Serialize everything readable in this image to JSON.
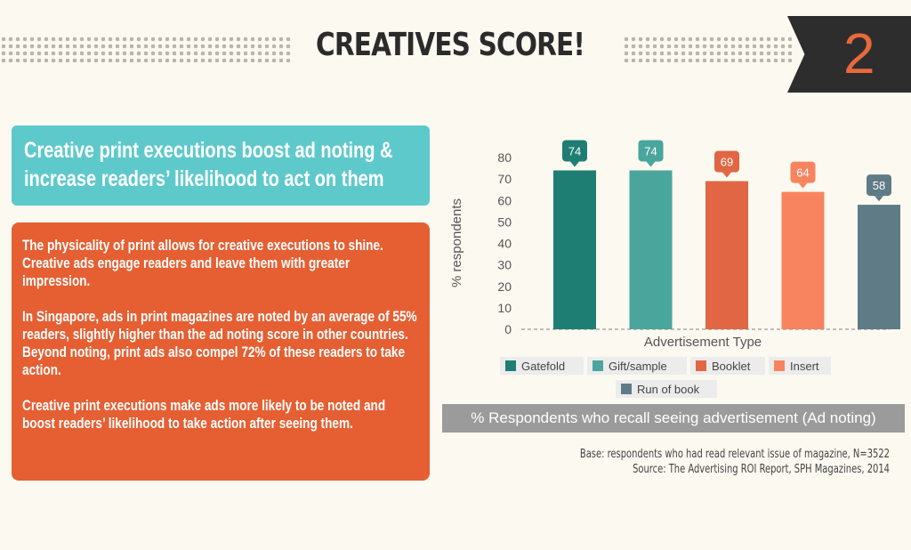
{
  "header": {
    "title": "CREATIVES SCORE!",
    "number": "2"
  },
  "headline": "Creative print executions boost ad noting & increase readers’ likelihood to act on them",
  "body": {
    "p1": "The physicality of print allows for creative executions to shine. Creative ads engage readers and leave them with greater impression.",
    "p2": "In Singapore, ads in print magazines are noted by an average of 55% readers, slightly higher than the ad noting score in other countries. Beyond noting, print ads also compel 72% of these readers to take action.",
    "p3": "Creative print executions make ads more likely to be noted and boost readers’ likelihood to take action after seeing them."
  },
  "colors": {
    "teal_box": "#5ec9cb",
    "orange_box": "#e55f32",
    "title_number": "#e8693c",
    "badge": "#2d2d2d"
  },
  "chart_data": {
    "type": "bar",
    "title": "% Respondents who recall seeing advertisement (Ad noting)",
    "xlabel": "Advertisement Type",
    "ylabel": "% respondents",
    "ylim": [
      0,
      80
    ],
    "yticks": [
      0,
      10,
      20,
      30,
      40,
      50,
      60,
      70,
      80
    ],
    "grid": false,
    "legend_position": "bottom",
    "categories": [
      "Gatefold",
      "Gift/sample",
      "Booklet",
      "Insert",
      "Run of book"
    ],
    "values": [
      74,
      74,
      69,
      64,
      58
    ],
    "colors": [
      "#1f7e73",
      "#4aa59d",
      "#e06644",
      "#f7845f",
      "#5e7b86"
    ]
  },
  "notes": {
    "base": "Base: respondents who had read relevant issue of magazine, N=3522",
    "source": "Source: The Advertising ROI Report, SPH Magazines, 2014"
  }
}
